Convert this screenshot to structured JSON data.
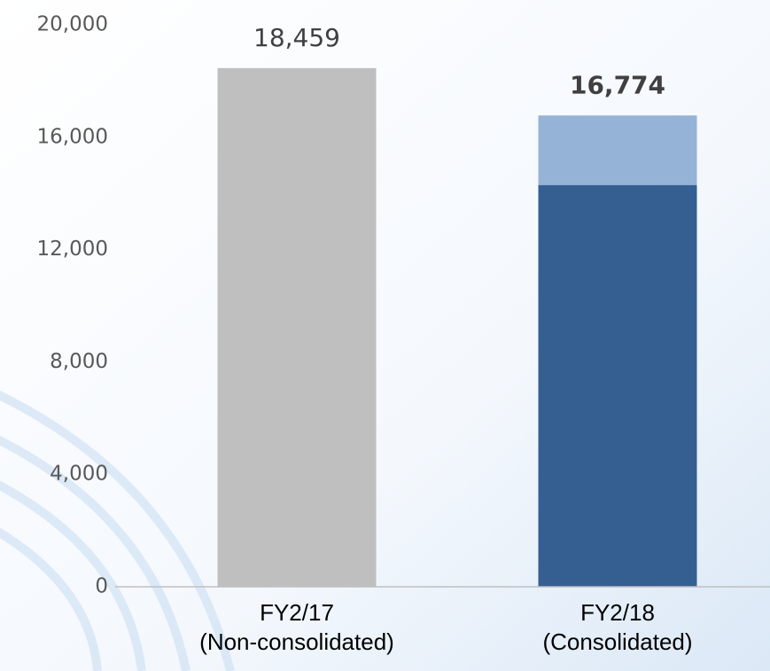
{
  "chart_data": {
    "type": "stacked_bar",
    "categories": [
      [
        "FY2/17",
        "(Non-consolidated)"
      ],
      [
        "FY2/18",
        "(Consolidated)"
      ]
    ],
    "series": [
      {
        "color": "#bfbfbf",
        "values": [
          18459,
          null
        ]
      },
      {
        "color": "#365f91",
        "values": [
          null,
          14300
        ]
      },
      {
        "color": "#95b3d7",
        "values": [
          null,
          2474
        ]
      }
    ],
    "totals": [
      18459,
      16774
    ],
    "total_labels": [
      "18,459",
      "16,774"
    ],
    "ylim": [
      0,
      20000
    ],
    "yticks": [
      0,
      {
        "value": 4000,
        "label": "4,000"
      },
      {
        "value": 8000,
        "label": "8,000"
      },
      {
        "value": 12000,
        "label": "12,000"
      },
      {
        "value": 16000,
        "label": "16,000"
      },
      {
        "value": 20000,
        "label": "20,000"
      }
    ],
    "grid": false
  }
}
